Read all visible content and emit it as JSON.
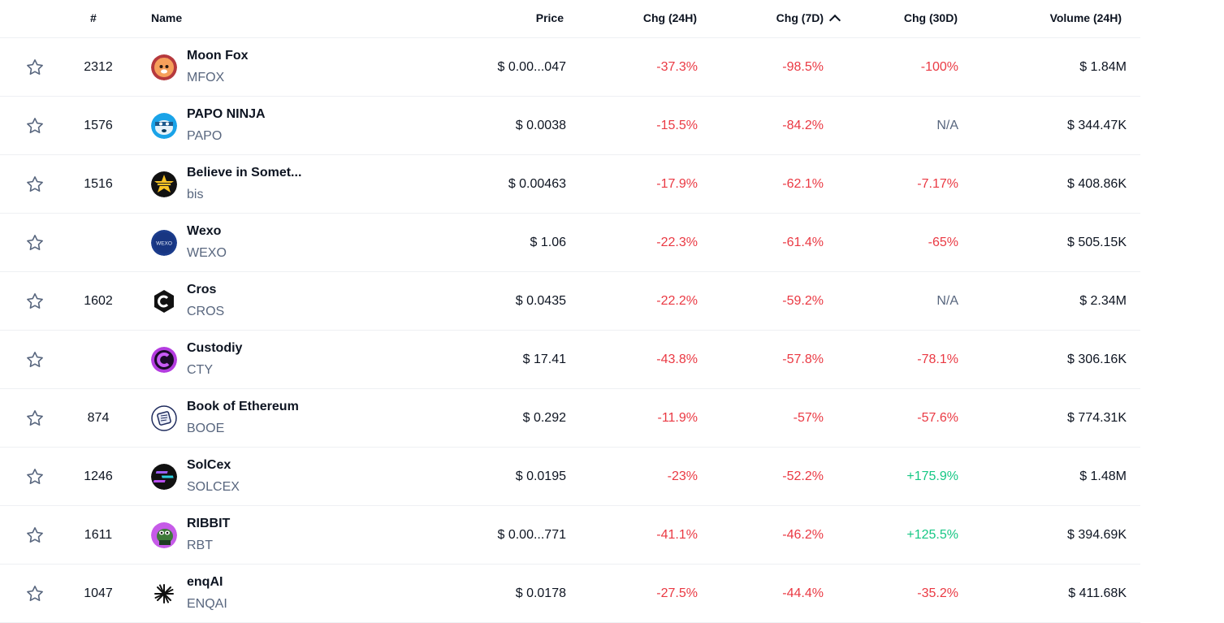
{
  "columns": {
    "rank": "#",
    "name": "Name",
    "price": "Price",
    "chg24": "Chg (24H)",
    "chg7": "Chg (7D)",
    "chg30": "Chg (30D)",
    "volume": "Volume (24H)"
  },
  "sort": {
    "column": "chg7",
    "direction": "ascending",
    "icon": "chevron-up-icon"
  },
  "colors": {
    "negative": "#ea3943",
    "positive": "#16c784",
    "neutral": "#58667e",
    "text": "#0d1421"
  },
  "rows": [
    {
      "rank": "2312",
      "name": "Moon Fox",
      "symbol": "MFOX",
      "price": "$ 0.00...047",
      "chg24": "-37.3%",
      "chg7": "-98.5%",
      "chg30": "-100%",
      "volume": "$ 1.84M",
      "logo_icon": "moon-fox-logo-icon"
    },
    {
      "rank": "1576",
      "name": "PAPO NINJA",
      "symbol": "PAPO",
      "price": "$ 0.0038",
      "chg24": "-15.5%",
      "chg7": "-84.2%",
      "chg30": "N/A",
      "volume": "$ 344.47K",
      "logo_icon": "papo-ninja-logo-icon"
    },
    {
      "rank": "1516",
      "name": "Believe in Somet...",
      "symbol": "bis",
      "price": "$ 0.00463",
      "chg24": "-17.9%",
      "chg7": "-62.1%",
      "chg30": "-7.17%",
      "volume": "$ 408.86K",
      "logo_icon": "believe-logo-icon"
    },
    {
      "rank": "",
      "name": "Wexo",
      "symbol": "WEXO",
      "price": "$ 1.06",
      "chg24": "-22.3%",
      "chg7": "-61.4%",
      "chg30": "-65%",
      "volume": "$ 505.15K",
      "logo_icon": "wexo-logo-icon"
    },
    {
      "rank": "1602",
      "name": "Cros",
      "symbol": "CROS",
      "price": "$ 0.0435",
      "chg24": "-22.2%",
      "chg7": "-59.2%",
      "chg30": "N/A",
      "volume": "$ 2.34M",
      "logo_icon": "cros-logo-icon"
    },
    {
      "rank": "",
      "name": "Custodiy",
      "symbol": "CTY",
      "price": "$ 17.41",
      "chg24": "-43.8%",
      "chg7": "-57.8%",
      "chg30": "-78.1%",
      "volume": "$ 306.16K",
      "logo_icon": "custodiy-logo-icon"
    },
    {
      "rank": "874",
      "name": "Book of Ethereum",
      "symbol": "BOOE",
      "price": "$ 0.292",
      "chg24": "-11.9%",
      "chg7": "-57%",
      "chg30": "-57.6%",
      "volume": "$ 774.31K",
      "logo_icon": "book-of-ethereum-logo-icon"
    },
    {
      "rank": "1246",
      "name": "SolCex",
      "symbol": "SOLCEX",
      "price": "$ 0.0195",
      "chg24": "-23%",
      "chg7": "-52.2%",
      "chg30": "+175.9%",
      "volume": "$ 1.48M",
      "logo_icon": "solcex-logo-icon"
    },
    {
      "rank": "1611",
      "name": "RIBBIT",
      "symbol": "RBT",
      "price": "$ 0.00...771",
      "chg24": "-41.1%",
      "chg7": "-46.2%",
      "chg30": "+125.5%",
      "volume": "$ 394.69K",
      "logo_icon": "ribbit-logo-icon"
    },
    {
      "rank": "1047",
      "name": "enqAI",
      "symbol": "ENQAI",
      "price": "$ 0.0178",
      "chg24": "-27.5%",
      "chg7": "-44.4%",
      "chg30": "-35.2%",
      "volume": "$ 411.68K",
      "logo_icon": "enqai-logo-icon"
    }
  ]
}
